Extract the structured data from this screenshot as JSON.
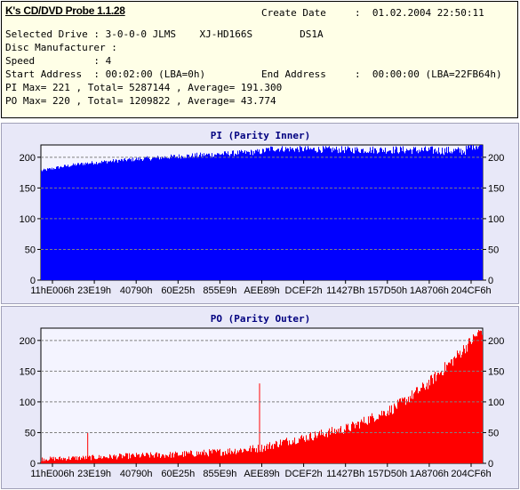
{
  "app": {
    "title": "K's CD/DVD Probe 1.1.28"
  },
  "info": {
    "create_date_label": "Create Date",
    "create_date_value": ":  01.02.2004 22:50:11",
    "selected_drive": "Selected Drive : 3-0-0-0 JLMS    XJ-HD166S        DS1A",
    "disc_manufacturer": "Disc Manufacturer :",
    "speed": "Speed          : 4",
    "start_address": "Start Address  : 00:02:00 (LBA=0h)",
    "end_address_label": "End Address",
    "end_address_value": ":  00:00:00 (LBA=22FB64h)",
    "pi_stats": "PI Max= 221 , Total= 5287144 , Average= 191.300",
    "po_stats": "PO Max= 220 , Total= 1209822 , Average= 43.774"
  },
  "chart_data": [
    {
      "type": "bar",
      "title": "PI (Parity Inner)",
      "color": "#0000ff",
      "ylim": [
        0,
        220
      ],
      "yticks": [
        0,
        50,
        100,
        150,
        200
      ],
      "xtick_labels": [
        "11hE006h",
        "23E19h",
        "40790h",
        "60E25h",
        "855E9h",
        "AEE89h",
        "DCEF2h",
        "11427Bh",
        "157D50h",
        "1A8706h",
        "204CF6h"
      ],
      "profile": [
        {
          "x": 0.0,
          "y": 178
        },
        {
          "x": 0.05,
          "y": 185
        },
        {
          "x": 0.1,
          "y": 190
        },
        {
          "x": 0.2,
          "y": 196
        },
        {
          "x": 0.3,
          "y": 201
        },
        {
          "x": 0.4,
          "y": 205
        },
        {
          "x": 0.5,
          "y": 209
        },
        {
          "x": 0.52,
          "y": 214
        },
        {
          "x": 0.6,
          "y": 213
        },
        {
          "x": 0.7,
          "y": 212
        },
        {
          "x": 0.8,
          "y": 212
        },
        {
          "x": 0.9,
          "y": 211
        },
        {
          "x": 0.96,
          "y": 210
        },
        {
          "x": 0.98,
          "y": 220
        },
        {
          "x": 1.0,
          "y": 219
        }
      ]
    },
    {
      "type": "bar",
      "title": "PO (Parity Outer)",
      "color": "#ff0000",
      "ylim": [
        0,
        220
      ],
      "yticks": [
        0,
        50,
        100,
        150,
        200
      ],
      "xtick_labels": [
        "11hE006h",
        "23E19h",
        "40790h",
        "60E25h",
        "855E9h",
        "AEE89h",
        "DCEF2h",
        "11427Bh",
        "157D50h",
        "1A8706h",
        "204CF6h"
      ],
      "profile": [
        {
          "x": 0.0,
          "y": 7
        },
        {
          "x": 0.1,
          "y": 9
        },
        {
          "x": 0.2,
          "y": 12
        },
        {
          "x": 0.3,
          "y": 14
        },
        {
          "x": 0.4,
          "y": 18
        },
        {
          "x": 0.5,
          "y": 25
        },
        {
          "x": 0.55,
          "y": 35
        },
        {
          "x": 0.6,
          "y": 42
        },
        {
          "x": 0.7,
          "y": 58
        },
        {
          "x": 0.8,
          "y": 90
        },
        {
          "x": 0.87,
          "y": 125
        },
        {
          "x": 0.93,
          "y": 165
        },
        {
          "x": 0.97,
          "y": 195
        },
        {
          "x": 1.0,
          "y": 218
        }
      ],
      "spikes": [
        {
          "x": 0.106,
          "y": 50
        },
        {
          "x": 0.495,
          "y": 130
        }
      ]
    }
  ]
}
